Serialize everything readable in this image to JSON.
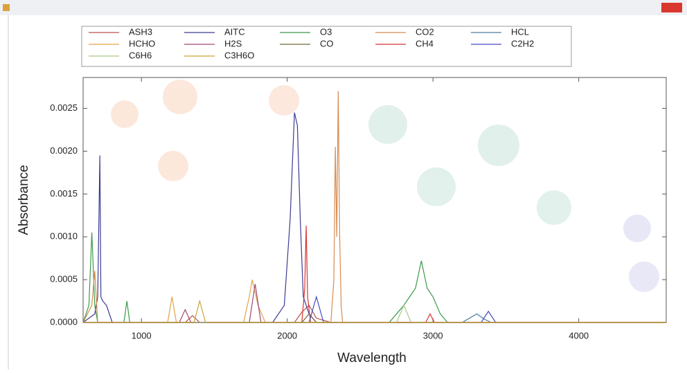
{
  "chart_data": {
    "type": "line",
    "x_label": "Wavelength",
    "y_label": "Absorbance",
    "xlim": [
      600,
      4600
    ],
    "xticks": [
      1000,
      2000,
      3000,
      4000
    ],
    "ylim": [
      0,
      0.00286
    ],
    "yticks": [
      {
        "value": 0,
        "label": "0.0000"
      },
      {
        "value": 0.0005,
        "label": "0.0005"
      },
      {
        "value": 0.001,
        "label": "0.0010"
      },
      {
        "value": 0.0015,
        "label": "0.0015"
      },
      {
        "value": 0.002,
        "label": "0.0020"
      },
      {
        "value": 0.0025,
        "label": "0.0025"
      }
    ],
    "series": [
      {
        "name": "ASH3",
        "color": "#b8504a",
        "x": [
          600,
          1300,
          1350,
          1400,
          2050,
          2100,
          2150,
          2200,
          2300,
          4600
        ],
        "values": [
          0,
          0,
          8e-05,
          0,
          0,
          0.00012,
          0.0002,
          5e-05,
          0,
          0
        ]
      },
      {
        "name": "AITC",
        "color": "#3a3a92",
        "x": [
          600,
          680,
          700,
          715,
          722,
          735,
          760,
          800,
          1900,
          1980,
          2020,
          2050,
          2070,
          2090,
          2110,
          2150,
          2200,
          4600
        ],
        "values": [
          0,
          0.0001,
          0.0003,
          0.00195,
          0.0003,
          0.00025,
          0.0002,
          0,
          0,
          0.0002,
          0.0012,
          0.00245,
          0.0023,
          0.0012,
          0.0003,
          0.0001,
          0,
          0
        ]
      },
      {
        "name": "O3",
        "color": "#3a9a4a",
        "x": [
          600,
          640,
          660,
          680,
          700,
          880,
          900,
          920,
          2700,
          2800,
          2880,
          2920,
          2960,
          3000,
          3050,
          3100,
          4600
        ],
        "values": [
          0,
          0.0002,
          0.00105,
          0.0002,
          0,
          0,
          0.00025,
          0,
          0,
          0.0002,
          0.0004,
          0.00072,
          0.0004,
          0.0003,
          0.0001,
          0,
          0
        ]
      },
      {
        "name": "CO2",
        "color": "#d68a4e",
        "x": [
          600,
          660,
          680,
          700,
          2300,
          2320,
          2330,
          2340,
          2350,
          2360,
          2370,
          2380,
          4600
        ],
        "values": [
          0,
          0.0002,
          0.0006,
          0,
          0,
          0.0005,
          0.00205,
          0.001,
          0.0027,
          0.001,
          0.0002,
          0,
          0
        ]
      },
      {
        "name": "HCL",
        "color": "#4a7ea0",
        "x": [
          600,
          3200,
          3250,
          3300,
          3350,
          3400,
          4600
        ],
        "values": [
          0,
          0,
          5e-05,
          0.0001,
          4e-05,
          0,
          0
        ]
      },
      {
        "name": "HCHO",
        "color": "#e0a446",
        "x": [
          600,
          1180,
          1210,
          1240,
          1700,
          1740,
          1760,
          1800,
          1850,
          4600
        ],
        "values": [
          0,
          0,
          0.0003,
          0,
          0,
          0.0003,
          0.0005,
          0.0002,
          0,
          0
        ]
      },
      {
        "name": "H2S",
        "color": "#a04670",
        "x": [
          600,
          1260,
          1300,
          1340,
          1740,
          1780,
          1820,
          4600
        ],
        "values": [
          0,
          0,
          0.00015,
          0,
          0,
          0.00045,
          0,
          0
        ]
      },
      {
        "name": "CO",
        "color": "#6e6a34",
        "x": [
          600,
          2100,
          2150,
          2200,
          4600
        ],
        "values": [
          0,
          0,
          0.0001,
          0,
          0
        ]
      },
      {
        "name": "CH4",
        "color": "#d83232",
        "x": [
          600,
          2100,
          2120,
          2130,
          2140,
          2160,
          2950,
          2980,
          3010,
          4600
        ],
        "values": [
          0,
          0,
          0.0004,
          0.00113,
          0.0003,
          0,
          0,
          0.0001,
          0,
          0
        ]
      },
      {
        "name": "C2H2",
        "color": "#4848c8",
        "x": [
          600,
          2150,
          2200,
          2250,
          3330,
          3380,
          3430,
          4600
        ],
        "values": [
          0,
          0,
          0.0003,
          0,
          0,
          0.00013,
          0,
          0
        ]
      },
      {
        "name": "C6H6",
        "color": "#a6c68a",
        "x": [
          600,
          2750,
          2800,
          2850,
          4600
        ],
        "values": [
          0,
          0,
          0.0002,
          0,
          0
        ]
      },
      {
        "name": "C3H6O",
        "color": "#c8a636",
        "x": [
          600,
          1360,
          1400,
          1440,
          4600
        ],
        "values": [
          0,
          0,
          0.00025,
          0,
          0
        ]
      }
    ]
  }
}
